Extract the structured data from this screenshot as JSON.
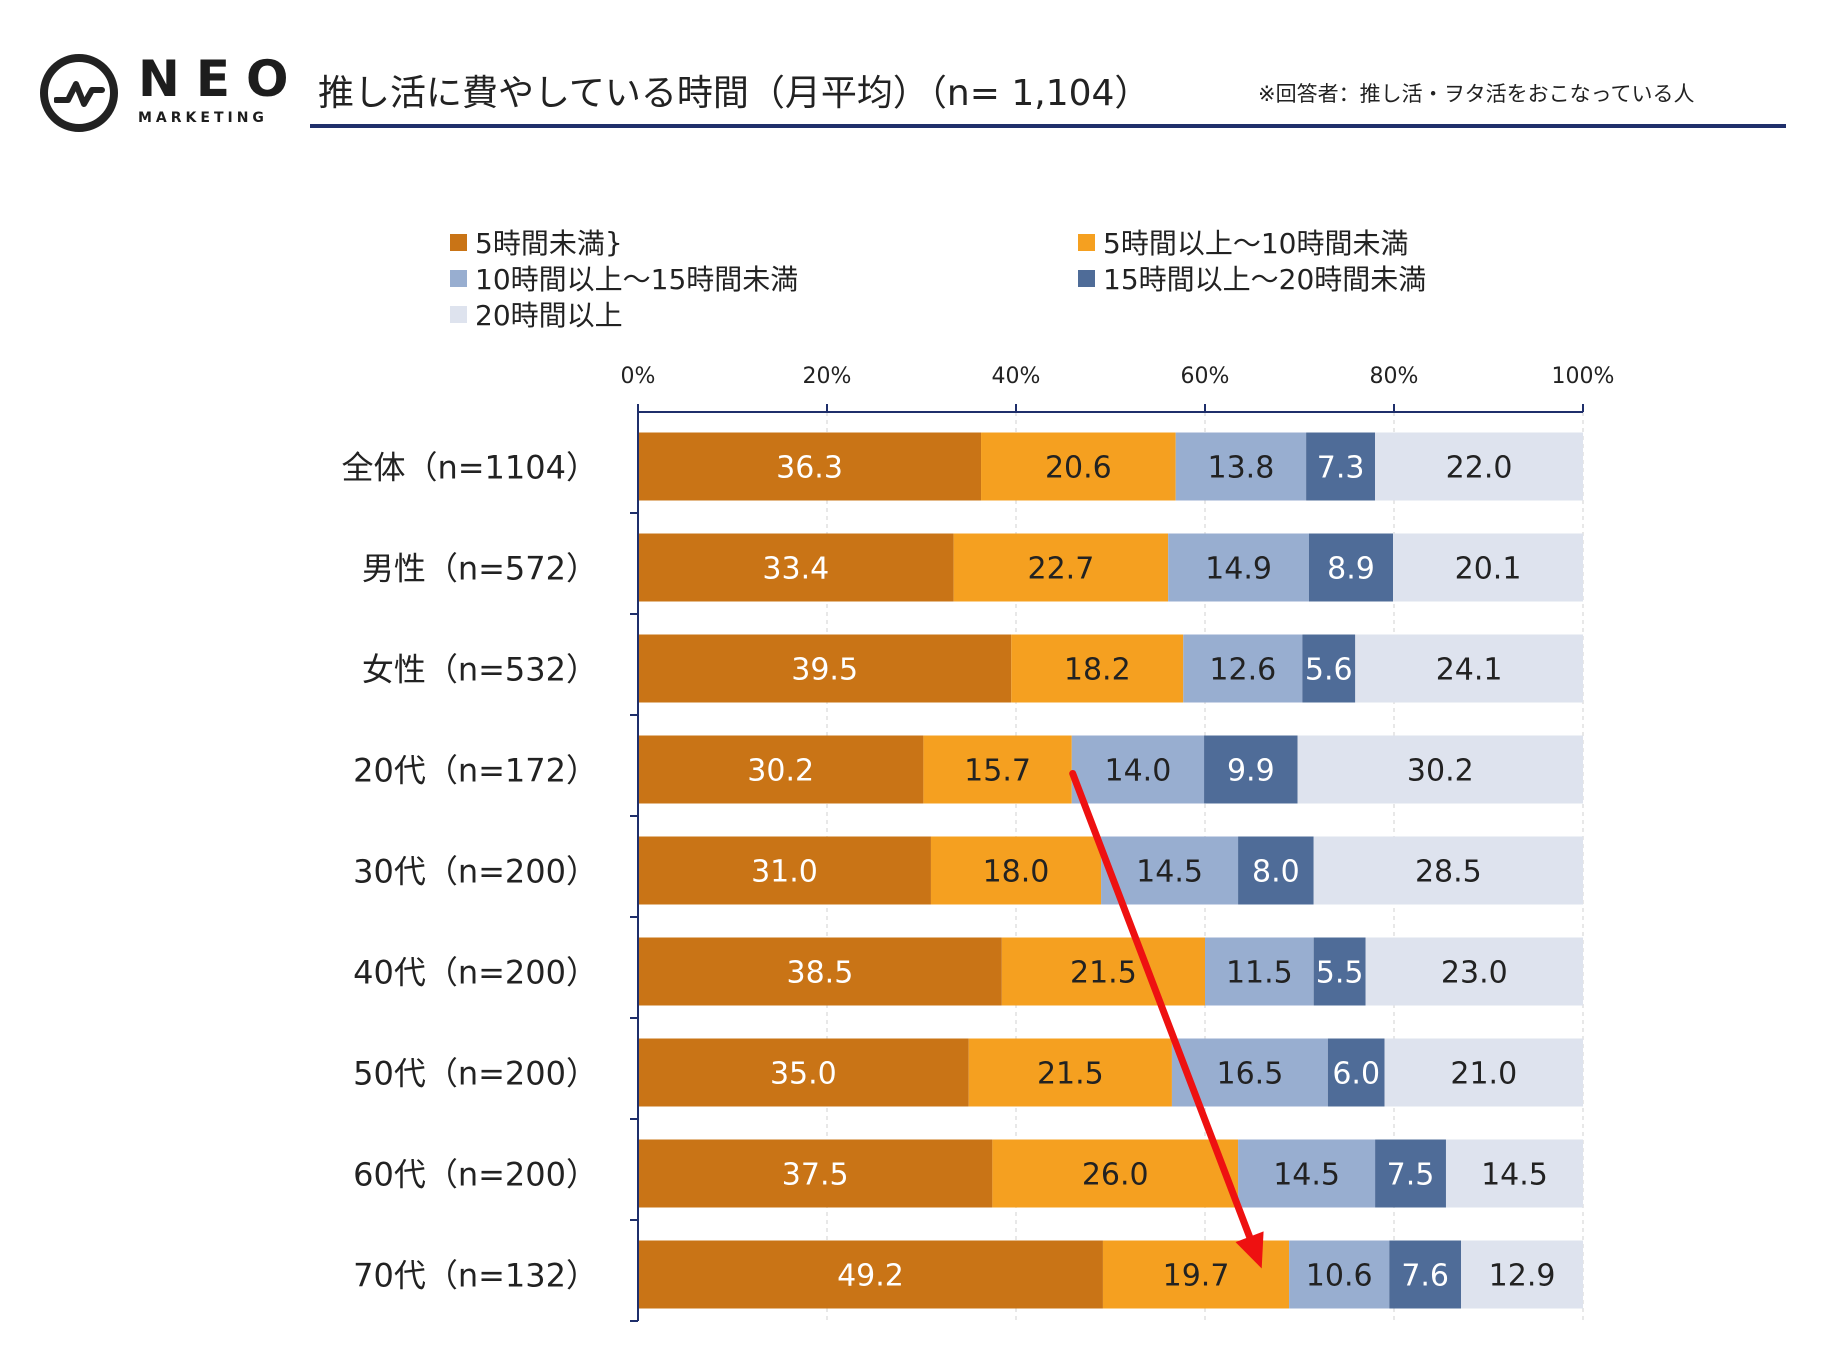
{
  "logo": {
    "word": "NEO",
    "sub": "MARKETING"
  },
  "title": "推し活に費やしている時間（月平均）（n= 1,104）",
  "note": "※回答者：推し活・ヲタ活をおこなっている人",
  "colors": {
    "series": [
      "#c97416",
      "#f5a020",
      "#98aed0",
      "#4f6c98",
      "#dee3ee"
    ],
    "label_dark": "#ffffff",
    "label_light": "#222222",
    "arrow": "#ee1111",
    "rule": "#1f2f6b"
  },
  "chart_data": {
    "type": "bar",
    "orientation": "horizontal",
    "stacked": true,
    "title": "推し活に費やしている時間（月平均）（n= 1,104）",
    "xlim": [
      0,
      100
    ],
    "xticks": [
      "0%",
      "20%",
      "40%",
      "60%",
      "80%",
      "100%"
    ],
    "legend_position": "top",
    "categories": [
      "全体（n=1104）",
      "男性（n=572）",
      "女性（n=532）",
      "20代（n=172）",
      "30代（n=200）",
      "40代（n=200）",
      "50代（n=200）",
      "60代（n=200）",
      "70代（n=132）"
    ],
    "series": [
      {
        "name": "5時間未満",
        "values": [
          36.3,
          33.4,
          39.5,
          30.2,
          31.0,
          38.5,
          35.0,
          37.5,
          49.2
        ]
      },
      {
        "name": "5時間以上～10時間未満",
        "values": [
          20.6,
          22.7,
          18.2,
          15.7,
          18.0,
          21.5,
          21.5,
          26.0,
          19.7
        ]
      },
      {
        "name": "10時間以上～15時間未満",
        "values": [
          13.8,
          14.9,
          12.6,
          14.0,
          14.5,
          11.5,
          16.5,
          14.5,
          10.6
        ]
      },
      {
        "name": "15時間以上～20時間未満",
        "values": [
          7.3,
          8.9,
          5.6,
          9.9,
          8.0,
          5.5,
          6.0,
          7.5,
          7.6
        ]
      },
      {
        "name": "20時間以上",
        "values": [
          22.0,
          20.1,
          24.1,
          30.2,
          28.5,
          23.0,
          21.0,
          14.5,
          12.9
        ]
      }
    ],
    "annotations": [
      {
        "type": "arrow",
        "from": {
          "category": "20代（n=172）",
          "value": 46.0
        },
        "to": {
          "category": "70代（n=132）",
          "value": 66.0
        }
      }
    ]
  }
}
